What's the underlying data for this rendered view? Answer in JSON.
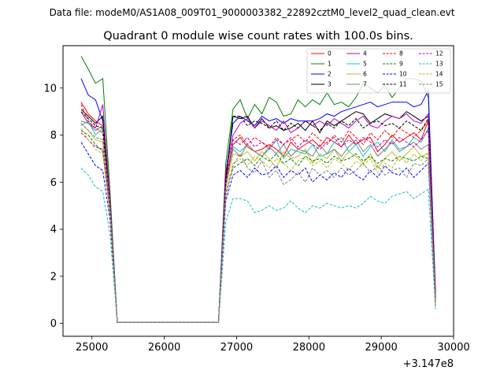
{
  "chart_data": {
    "type": "line",
    "suptitle": "Data file: modeM0/AS1A08_009T01_9000003382_22892cztM0_level2_quad_clean.evt",
    "title": "Quadrant 0 module wise count rates with 100.0s bins.",
    "xlabel": "",
    "ylabel": "",
    "x_offset_label": "+3.147e8",
    "xlim": [
      24600,
      30000
    ],
    "ylim": [
      -0.55,
      11.8
    ],
    "x_ticks": [
      25000,
      26000,
      27000,
      28000,
      29000,
      30000
    ],
    "x_tick_labels": [
      "25000",
      "26000",
      "27000",
      "28000",
      "29000",
      "30000"
    ],
    "y_ticks": [
      0,
      2,
      4,
      6,
      8,
      10
    ],
    "y_tick_labels": [
      "0",
      "2",
      "4",
      "6",
      "8",
      "10"
    ],
    "grid": false,
    "legend_position": "top-right",
    "x": [
      24850,
      24950,
      25050,
      25150,
      25250,
      25350,
      25450,
      25550,
      25650,
      25750,
      25850,
      25950,
      26050,
      26150,
      26250,
      26350,
      26450,
      26550,
      26650,
      26750,
      26850,
      26950,
      27050,
      27150,
      27250,
      27350,
      27450,
      27550,
      27650,
      27750,
      27850,
      27950,
      28050,
      28150,
      28250,
      28350,
      28450,
      28550,
      28650,
      28750,
      28850,
      28950,
      29050,
      29150,
      29250,
      29350,
      29450,
      29550,
      29650,
      29750
    ],
    "series": [
      {
        "name": "0",
        "color": "#ff0000",
        "dash": false,
        "values": [
          9.4,
          8.9,
          8.6,
          8.4,
          5.2,
          0.05,
          0.05,
          0.05,
          0.05,
          0.05,
          0.05,
          0.05,
          0.05,
          0.05,
          0.05,
          0.05,
          0.05,
          0.05,
          0.05,
          0.05,
          6.2,
          7.6,
          7.9,
          7.5,
          7.3,
          7.4,
          7.6,
          7.4,
          7.1,
          7.7,
          7.4,
          7.6,
          7.8,
          7.5,
          7.9,
          7.7,
          7.5,
          8.0,
          7.6,
          7.8,
          7.9,
          7.3,
          7.6,
          8.0,
          7.7,
          7.9,
          8.1,
          7.8,
          8.6,
          1.2
        ]
      },
      {
        "name": "1",
        "color": "#008000",
        "dash": false,
        "values": [
          11.35,
          10.8,
          10.2,
          10.4,
          5.6,
          0.05,
          0.05,
          0.05,
          0.05,
          0.05,
          0.05,
          0.05,
          0.05,
          0.05,
          0.05,
          0.05,
          0.05,
          0.05,
          0.05,
          0.05,
          6.8,
          9.1,
          9.5,
          8.7,
          9.3,
          8.9,
          9.6,
          9.4,
          8.8,
          8.9,
          9.5,
          9.2,
          9.5,
          9.3,
          9.8,
          9.3,
          9.4,
          9.2,
          9.6,
          10.2,
          10.0,
          9.8,
          10.1,
          9.6,
          10.0,
          10.4,
          10.4,
          10.3,
          9.6,
          1.4
        ]
      },
      {
        "name": "2",
        "color": "#0000ff",
        "dash": false,
        "values": [
          10.4,
          9.7,
          9.5,
          8.6,
          5.2,
          0.05,
          0.05,
          0.05,
          0.05,
          0.05,
          0.05,
          0.05,
          0.05,
          0.05,
          0.05,
          0.05,
          0.05,
          0.05,
          0.05,
          0.05,
          6.4,
          8.5,
          8.8,
          8.6,
          8.4,
          8.8,
          8.6,
          8.7,
          8.5,
          8.7,
          8.6,
          8.6,
          8.6,
          8.7,
          8.9,
          8.8,
          9.0,
          9.1,
          9.2,
          9.3,
          9.4,
          9.2,
          9.3,
          9.4,
          9.4,
          9.4,
          9.2,
          9.3,
          9.9,
          1.2
        ]
      },
      {
        "name": "3",
        "color": "#000000",
        "dash": false,
        "values": [
          9.1,
          8.8,
          8.5,
          8.8,
          5.0,
          0.05,
          0.05,
          0.05,
          0.05,
          0.05,
          0.05,
          0.05,
          0.05,
          0.05,
          0.05,
          0.05,
          0.05,
          0.05,
          0.05,
          0.05,
          6.1,
          8.8,
          8.7,
          8.8,
          8.3,
          8.7,
          8.3,
          8.4,
          8.2,
          8.3,
          8.5,
          8.2,
          8.6,
          8.1,
          8.6,
          8.4,
          8.6,
          8.8,
          9.0,
          8.9,
          8.5,
          8.7,
          8.9,
          8.8,
          8.7,
          9.0,
          8.8,
          8.6,
          8.8,
          1.1
        ]
      },
      {
        "name": "4",
        "color": "#bf00bf",
        "dash": false,
        "values": [
          9.0,
          8.5,
          8.3,
          9.3,
          5.3,
          0.05,
          0.05,
          0.05,
          0.05,
          0.05,
          0.05,
          0.05,
          0.05,
          0.05,
          0.05,
          0.05,
          0.05,
          0.05,
          0.05,
          0.05,
          6.4,
          8.0,
          8.5,
          8.7,
          8.3,
          8.6,
          8.4,
          8.2,
          8.6,
          8.1,
          8.3,
          8.6,
          8.4,
          8.6,
          8.4,
          8.7,
          8.5,
          8.3,
          8.6,
          8.8,
          8.4,
          8.3,
          8.6,
          8.8,
          8.7,
          8.9,
          8.6,
          8.5,
          8.9,
          1.2
        ]
      },
      {
        "name": "5",
        "color": "#17becf",
        "dash": false,
        "values": [
          8.4,
          8.6,
          8.0,
          8.3,
          5.0,
          0.05,
          0.05,
          0.05,
          0.05,
          0.05,
          0.05,
          0.05,
          0.05,
          0.05,
          0.05,
          0.05,
          0.05,
          0.05,
          0.05,
          0.05,
          5.9,
          7.5,
          7.3,
          7.6,
          7.3,
          7.1,
          7.4,
          7.8,
          7.0,
          7.4,
          7.3,
          7.2,
          7.6,
          7.1,
          7.2,
          7.7,
          7.9,
          7.3,
          7.6,
          7.1,
          7.5,
          7.7,
          7.3,
          7.8,
          7.4,
          7.5,
          7.9,
          7.7,
          8.3,
          0.7
        ]
      },
      {
        "name": "6",
        "color": "#bcbd22",
        "dash": false,
        "values": [
          8.5,
          8.2,
          7.8,
          7.7,
          4.8,
          0.05,
          0.05,
          0.05,
          0.05,
          0.05,
          0.05,
          0.05,
          0.05,
          0.05,
          0.05,
          0.05,
          0.05,
          0.05,
          0.05,
          0.05,
          5.8,
          7.2,
          7.1,
          7.3,
          6.9,
          7.3,
          7.0,
          6.6,
          7.3,
          7.0,
          7.1,
          7.4,
          6.8,
          7.2,
          7.0,
          7.4,
          6.9,
          7.3,
          7.1,
          6.8,
          7.2,
          6.6,
          7.0,
          7.3,
          6.9,
          7.2,
          7.5,
          7.1,
          7.2,
          0.9
        ]
      },
      {
        "name": "7",
        "color": "#7f7f7f",
        "dash": false,
        "values": [
          8.6,
          8.5,
          8.2,
          8.4,
          5.0,
          0.05,
          0.05,
          0.05,
          0.05,
          0.05,
          0.05,
          0.05,
          0.05,
          0.05,
          0.05,
          0.05,
          0.05,
          0.05,
          0.05,
          0.05,
          6.0,
          7.4,
          7.1,
          7.6,
          7.3,
          7.1,
          7.5,
          7.2,
          7.6,
          7.1,
          7.4,
          7.3,
          7.1,
          7.6,
          7.2,
          7.4,
          7.1,
          7.5,
          7.8,
          7.3,
          7.6,
          7.1,
          7.4,
          7.7,
          7.3,
          7.5,
          7.7,
          7.4,
          7.6,
          0.8
        ]
      },
      {
        "name": "8",
        "color": "#ff0000",
        "dash": true,
        "values": [
          9.3,
          8.6,
          8.3,
          8.1,
          5.1,
          0.05,
          0.05,
          0.05,
          0.05,
          0.05,
          0.05,
          0.05,
          0.05,
          0.05,
          0.05,
          0.05,
          0.05,
          0.05,
          0.05,
          0.05,
          6.0,
          7.8,
          8.0,
          7.6,
          7.9,
          7.7,
          7.5,
          7.9,
          7.6,
          7.8,
          8.0,
          7.7,
          8.1,
          7.8,
          7.6,
          8.0,
          7.7,
          8.2,
          7.9,
          7.6,
          8.1,
          7.8,
          8.2,
          7.9,
          8.3,
          8.1,
          7.9,
          8.2,
          8.6,
          1.0
        ]
      },
      {
        "name": "9",
        "color": "#008000",
        "dash": true,
        "values": [
          8.2,
          8.0,
          7.6,
          7.3,
          4.8,
          0.05,
          0.05,
          0.05,
          0.05,
          0.05,
          0.05,
          0.05,
          0.05,
          0.05,
          0.05,
          0.05,
          0.05,
          0.05,
          0.05,
          0.05,
          5.5,
          6.6,
          6.8,
          7.0,
          6.7,
          7.1,
          6.9,
          7.2,
          6.8,
          7.0,
          6.7,
          7.1,
          6.9,
          7.0,
          6.8,
          7.1,
          6.9,
          7.0,
          7.2,
          6.9,
          7.1,
          6.8,
          7.0,
          6.9,
          7.1,
          7.0,
          6.9,
          7.1,
          7.0,
          0.9
        ]
      },
      {
        "name": "10",
        "color": "#0000ff",
        "dash": true,
        "values": [
          7.7,
          7.2,
          6.7,
          6.5,
          4.4,
          0.05,
          0.05,
          0.05,
          0.05,
          0.05,
          0.05,
          0.05,
          0.05,
          0.05,
          0.05,
          0.05,
          0.05,
          0.05,
          0.05,
          0.05,
          5.2,
          6.3,
          6.5,
          6.2,
          6.6,
          6.3,
          6.4,
          6.7,
          6.2,
          6.5,
          6.3,
          6.6,
          6.0,
          6.3,
          6.1,
          6.4,
          6.2,
          6.6,
          6.3,
          6.1,
          6.5,
          6.2,
          6.7,
          6.4,
          6.3,
          6.6,
          6.2,
          6.5,
          6.8,
          0.9
        ]
      },
      {
        "name": "11",
        "color": "#000000",
        "dash": true,
        "values": [
          9.0,
          8.7,
          8.4,
          8.3,
          5.0,
          0.05,
          0.05,
          0.05,
          0.05,
          0.05,
          0.05,
          0.05,
          0.05,
          0.05,
          0.05,
          0.05,
          0.05,
          0.05,
          0.05,
          0.05,
          6.1,
          8.8,
          8.8,
          8.4,
          8.6,
          8.5,
          8.3,
          8.6,
          8.2,
          8.5,
          8.3,
          8.6,
          8.4,
          8.2,
          8.5,
          8.3,
          8.6,
          8.4,
          8.7,
          8.3,
          8.5,
          8.6,
          8.4,
          8.5,
          8.3,
          8.6,
          8.4,
          8.2,
          8.7,
          1.0
        ]
      },
      {
        "name": "12",
        "color": "#bf00bf",
        "dash": true,
        "values": [
          8.1,
          7.8,
          7.5,
          7.4,
          4.7,
          0.05,
          0.05,
          0.05,
          0.05,
          0.05,
          0.05,
          0.05,
          0.05,
          0.05,
          0.05,
          0.05,
          0.05,
          0.05,
          0.05,
          0.05,
          5.8,
          7.8,
          7.6,
          7.9,
          7.5,
          7.7,
          7.4,
          7.8,
          7.6,
          7.9,
          7.5,
          7.8,
          7.6,
          7.4,
          7.7,
          7.9,
          7.5,
          7.8,
          7.6,
          7.9,
          7.7,
          7.5,
          7.8,
          7.6,
          7.9,
          7.7,
          7.5,
          7.8,
          8.2,
          0.9
        ]
      },
      {
        "name": "13",
        "color": "#17becf",
        "dash": true,
        "values": [
          6.6,
          6.3,
          5.8,
          5.6,
          3.8,
          0.05,
          0.05,
          0.05,
          0.05,
          0.05,
          0.05,
          0.05,
          0.05,
          0.05,
          0.05,
          0.05,
          0.05,
          0.05,
          0.05,
          0.05,
          4.3,
          5.3,
          5.3,
          5.2,
          4.7,
          4.8,
          5.0,
          4.8,
          4.9,
          5.2,
          4.9,
          4.7,
          5.0,
          4.9,
          5.1,
          5.0,
          4.9,
          5.0,
          4.9,
          5.1,
          5.4,
          5.2,
          5.1,
          5.4,
          5.5,
          5.6,
          5.3,
          5.5,
          5.7,
          0.6
        ]
      },
      {
        "name": "14",
        "color": "#bcbd22",
        "dash": true,
        "values": [
          8.3,
          7.8,
          7.4,
          7.2,
          4.6,
          0.05,
          0.05,
          0.05,
          0.05,
          0.05,
          0.05,
          0.05,
          0.05,
          0.05,
          0.05,
          0.05,
          0.05,
          0.05,
          0.05,
          0.05,
          5.6,
          6.8,
          7.0,
          6.7,
          7.1,
          6.9,
          6.6,
          7.0,
          6.8,
          6.5,
          6.9,
          7.1,
          6.7,
          6.9,
          6.6,
          7.0,
          6.8,
          6.5,
          6.9,
          6.7,
          7.0,
          6.4,
          6.8,
          6.6,
          7.1,
          6.8,
          7.2,
          6.9,
          7.3,
          0.8
        ]
      },
      {
        "name": "15",
        "color": "#7f7f7f",
        "dash": true,
        "values": [
          8.5,
          8.2,
          7.9,
          7.8,
          4.9,
          0.05,
          0.05,
          0.05,
          0.05,
          0.05,
          0.05,
          0.05,
          0.05,
          0.05,
          0.05,
          0.05,
          0.05,
          0.05,
          0.05,
          0.05,
          5.4,
          6.7,
          7.2,
          6.6,
          6.4,
          6.9,
          6.2,
          6.5,
          5.9,
          6.1,
          6.4,
          6.0,
          6.6,
          6.3,
          6.5,
          6.2,
          6.6,
          6.3,
          6.5,
          6.8,
          6.4,
          6.7,
          6.3,
          6.5,
          6.6,
          6.2,
          6.8,
          6.7,
          7.0,
          0.8
        ]
      }
    ]
  }
}
